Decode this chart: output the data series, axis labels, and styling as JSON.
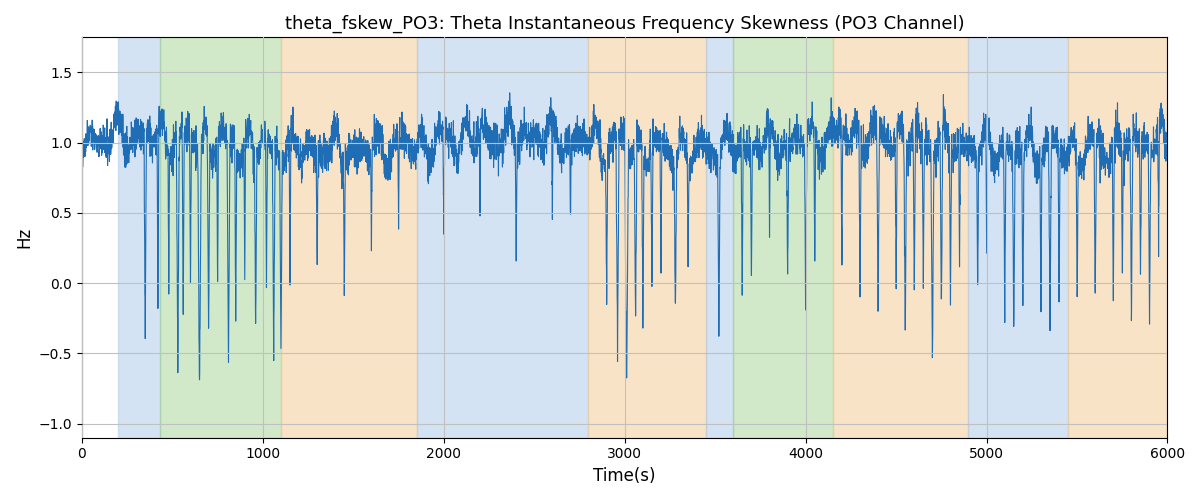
{
  "title": "theta_fskew_PO3: Theta Instantaneous Frequency Skewness (PO3 Channel)",
  "xlabel": "Time(s)",
  "ylabel": "Hz",
  "xlim": [
    0,
    6000
  ],
  "ylim": [
    -1.1,
    1.75
  ],
  "line_color": "#1f6eb5",
  "line_width": 0.8,
  "background_color": "#ffffff",
  "grid_color": "#c0c0c0",
  "seed": 42,
  "n_points": 6000,
  "bands": [
    {
      "xmin": 200,
      "xmax": 430,
      "color": "#aac8e8",
      "alpha": 0.5
    },
    {
      "xmin": 430,
      "xmax": 1100,
      "color": "#90c87a",
      "alpha": 0.4
    },
    {
      "xmin": 1100,
      "xmax": 1850,
      "color": "#f5c990",
      "alpha": 0.5
    },
    {
      "xmin": 1850,
      "xmax": 2800,
      "color": "#aac8e8",
      "alpha": 0.5
    },
    {
      "xmin": 2800,
      "xmax": 3450,
      "color": "#f5c990",
      "alpha": 0.5
    },
    {
      "xmin": 3450,
      "xmax": 3600,
      "color": "#aac8e8",
      "alpha": 0.5
    },
    {
      "xmin": 3600,
      "xmax": 4150,
      "color": "#90c87a",
      "alpha": 0.4
    },
    {
      "xmin": 4150,
      "xmax": 4900,
      "color": "#f5c990",
      "alpha": 0.5
    },
    {
      "xmin": 4900,
      "xmax": 5450,
      "color": "#aac8e8",
      "alpha": 0.5
    },
    {
      "xmin": 5450,
      "xmax": 6050,
      "color": "#f5c990",
      "alpha": 0.5
    }
  ]
}
